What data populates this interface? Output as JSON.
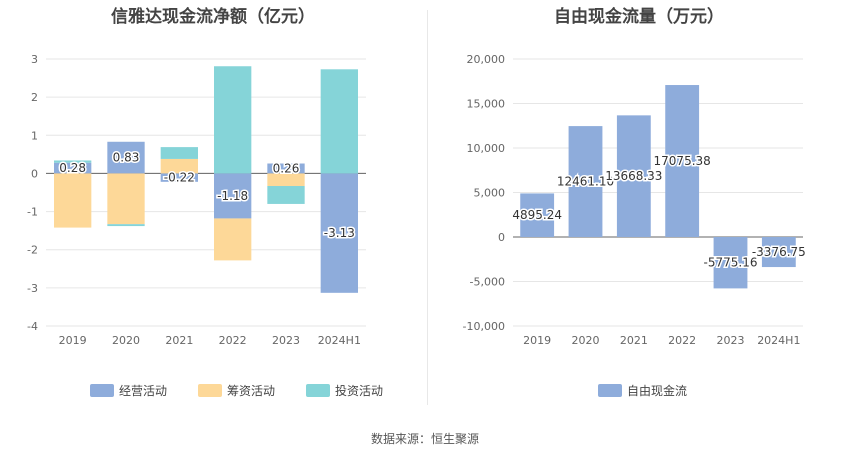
{
  "source_text": "数据来源：恒生聚源",
  "chart_data": [
    {
      "type": "bar",
      "stacked": true,
      "title": "信雅达现金流净额（亿元）",
      "categories": [
        "2019",
        "2020",
        "2021",
        "2022",
        "2023",
        "2024H1"
      ],
      "series": [
        {
          "name": "经营活动",
          "color": "#8eacdb",
          "values": [
            0.28,
            0.83,
            -0.22,
            -1.18,
            0.26,
            -3.13
          ],
          "labels": [
            "0.28",
            "0.83",
            "-0.22",
            "-1.18",
            "0.26",
            "-3.13"
          ]
        },
        {
          "name": "筹资活动",
          "color": "#fdd898",
          "values": [
            -1.42,
            -1.33,
            0.38,
            -1.1,
            -0.33,
            0.0
          ]
        },
        {
          "name": "投资活动",
          "color": "#85d4d8",
          "values": [
            0.06,
            -0.05,
            0.31,
            2.81,
            -0.47,
            2.73
          ]
        }
      ],
      "ylim": [
        -4,
        3
      ],
      "yticks": [
        "-4",
        "-3",
        "-2",
        "-1",
        "0",
        "1",
        "2",
        "3"
      ],
      "grid": true,
      "legend": "bottom"
    },
    {
      "type": "bar",
      "title": "自由现金流量（万元）",
      "categories": [
        "2019",
        "2020",
        "2021",
        "2022",
        "2023",
        "2024H1"
      ],
      "series": [
        {
          "name": "自由现金流",
          "color": "#8eacdb",
          "values": [
            4895.24,
            12461.1,
            13668.33,
            17075.38,
            -5775.16,
            -3376.75
          ],
          "labels": [
            "4895.24",
            "12461.10",
            "13668.33",
            "17075.38",
            "-5775.16",
            "-3376.75"
          ]
        }
      ],
      "ylim": [
        -10000,
        20000
      ],
      "yticks": [
        "-10,000",
        "-5,000",
        "0",
        "5,000",
        "10,000",
        "15,000",
        "20,000"
      ],
      "grid": true,
      "legend": "bottom"
    }
  ]
}
